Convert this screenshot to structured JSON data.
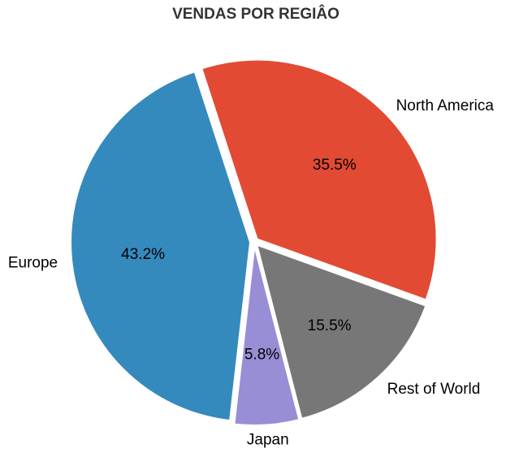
{
  "chart_data": {
    "type": "pie",
    "title": "VENDAS POR REGIÂO",
    "categories": [
      "North America",
      "Rest of World",
      "Japan",
      "Europe"
    ],
    "values": [
      35.5,
      15.5,
      5.8,
      43.2
    ],
    "percent_labels": [
      "35.5%",
      "15.5%",
      "5.8%",
      "43.2%"
    ],
    "colors": [
      "#E24A33",
      "#777777",
      "#988ED5",
      "#348ABD"
    ],
    "exploded": true,
    "legend": "none"
  }
}
